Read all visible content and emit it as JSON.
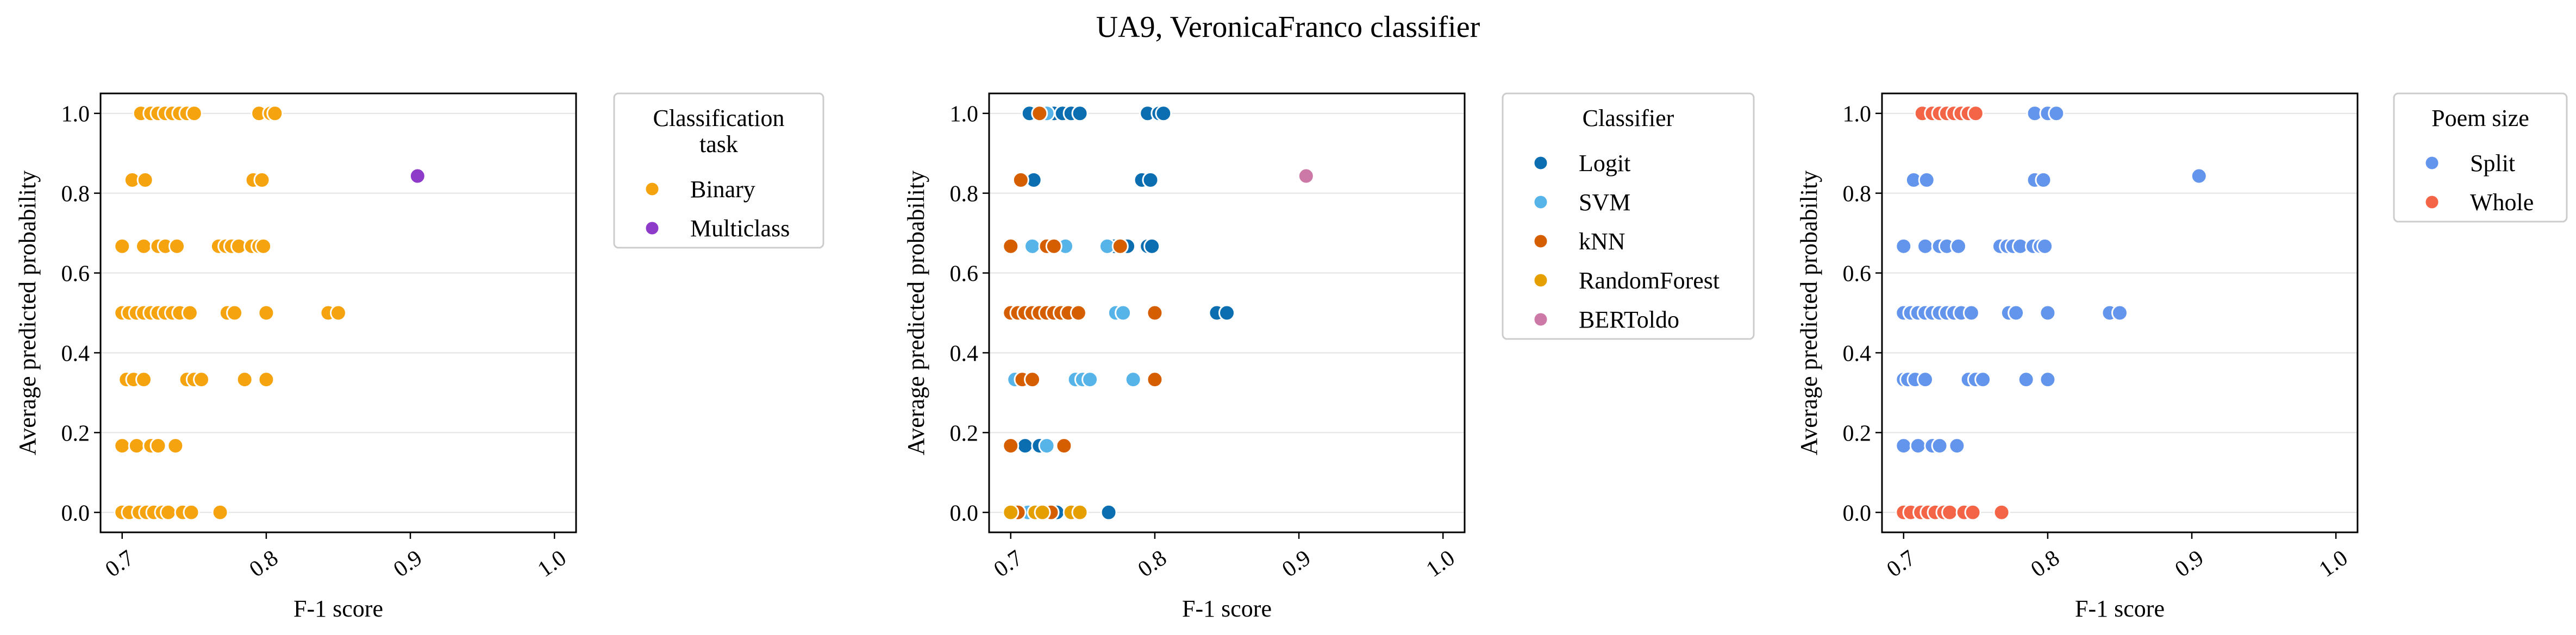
{
  "figure": {
    "suptitle": "UA9, VeronicaFranco classifier"
  },
  "chart_data": [
    {
      "type": "scatter",
      "xlabel": "F-1 score",
      "ylabel": "Average predicted probability",
      "xlim": [
        0.685,
        1.015
      ],
      "ylim": [
        -0.05,
        1.05
      ],
      "xticks": [
        "0.7",
        "0.8",
        "0.9",
        "1.0"
      ],
      "yticks": [
        "0.0",
        "0.2",
        "0.4",
        "0.6",
        "0.8",
        "1.0"
      ],
      "grid": "horizontal",
      "legend": {
        "title": "Classification\ntask",
        "placement": "outside-right",
        "entries": [
          {
            "label": "Binary",
            "color": "#f5a30f"
          },
          {
            "label": "Multiclass",
            "color": "#8e3bc9"
          }
        ]
      },
      "series": [
        {
          "name": "Binary",
          "color": "#f5a30f",
          "points": [
            [
              0.713,
              1.0
            ],
            [
              0.72,
              1.0
            ],
            [
              0.725,
              1.0
            ],
            [
              0.73,
              1.0
            ],
            [
              0.735,
              1.0
            ],
            [
              0.74,
              1.0
            ],
            [
              0.745,
              1.0
            ],
            [
              0.75,
              1.0
            ],
            [
              0.795,
              1.0
            ],
            [
              0.803,
              1.0
            ],
            [
              0.806,
              1.0
            ],
            [
              0.707,
              0.833
            ],
            [
              0.716,
              0.833
            ],
            [
              0.791,
              0.833
            ],
            [
              0.797,
              0.833
            ],
            [
              0.7,
              0.667
            ],
            [
              0.715,
              0.667
            ],
            [
              0.725,
              0.667
            ],
            [
              0.73,
              0.667
            ],
            [
              0.738,
              0.667
            ],
            [
              0.767,
              0.667
            ],
            [
              0.772,
              0.667
            ],
            [
              0.776,
              0.667
            ],
            [
              0.781,
              0.667
            ],
            [
              0.79,
              0.667
            ],
            [
              0.795,
              0.667
            ],
            [
              0.798,
              0.667
            ],
            [
              0.7,
              0.5
            ],
            [
              0.705,
              0.5
            ],
            [
              0.71,
              0.5
            ],
            [
              0.715,
              0.5
            ],
            [
              0.72,
              0.5
            ],
            [
              0.725,
              0.5
            ],
            [
              0.73,
              0.5
            ],
            [
              0.735,
              0.5
            ],
            [
              0.74,
              0.5
            ],
            [
              0.747,
              0.5
            ],
            [
              0.773,
              0.5
            ],
            [
              0.778,
              0.5
            ],
            [
              0.8,
              0.5
            ],
            [
              0.843,
              0.5
            ],
            [
              0.85,
              0.5
            ],
            [
              0.703,
              0.333
            ],
            [
              0.708,
              0.333
            ],
            [
              0.715,
              0.333
            ],
            [
              0.745,
              0.333
            ],
            [
              0.75,
              0.333
            ],
            [
              0.755,
              0.333
            ],
            [
              0.785,
              0.333
            ],
            [
              0.8,
              0.333
            ],
            [
              0.7,
              0.167
            ],
            [
              0.71,
              0.167
            ],
            [
              0.72,
              0.167
            ],
            [
              0.725,
              0.167
            ],
            [
              0.737,
              0.167
            ],
            [
              0.7,
              0.0
            ],
            [
              0.705,
              0.0
            ],
            [
              0.712,
              0.0
            ],
            [
              0.717,
              0.0
            ],
            [
              0.722,
              0.0
            ],
            [
              0.728,
              0.0
            ],
            [
              0.732,
              0.0
            ],
            [
              0.742,
              0.0
            ],
            [
              0.748,
              0.0
            ],
            [
              0.768,
              0.0
            ]
          ]
        },
        {
          "name": "Multiclass",
          "color": "#8e3bc9",
          "points": [
            [
              0.905,
              0.843
            ]
          ]
        }
      ]
    },
    {
      "type": "scatter",
      "xlabel": "F-1 score",
      "ylabel": "Average predicted probability",
      "xlim": [
        0.685,
        1.015
      ],
      "ylim": [
        -0.05,
        1.05
      ],
      "xticks": [
        "0.7",
        "0.8",
        "0.9",
        "1.0"
      ],
      "yticks": [
        "0.0",
        "0.2",
        "0.4",
        "0.6",
        "0.8",
        "1.0"
      ],
      "grid": "horizontal",
      "legend": {
        "title": "Classifier",
        "placement": "outside-right",
        "entries": [
          {
            "label": "Logit",
            "color": "#0b6eb0"
          },
          {
            "label": "SVM",
            "color": "#56b4e9"
          },
          {
            "label": "kNN",
            "color": "#d55e00"
          },
          {
            "label": "RandomForest",
            "color": "#e69f00"
          },
          {
            "label": "BERToldo",
            "color": "#cc79a7"
          }
        ]
      },
      "series": [
        {
          "name": "Logit",
          "color": "#0b6eb0",
          "points": [
            [
              0.713,
              1.0
            ],
            [
              0.73,
              1.0
            ],
            [
              0.736,
              1.0
            ],
            [
              0.742,
              1.0
            ],
            [
              0.748,
              1.0
            ],
            [
              0.795,
              1.0
            ],
            [
              0.803,
              1.0
            ],
            [
              0.806,
              1.0
            ],
            [
              0.716,
              0.833
            ],
            [
              0.791,
              0.833
            ],
            [
              0.797,
              0.833
            ],
            [
              0.772,
              0.667
            ],
            [
              0.781,
              0.667
            ],
            [
              0.795,
              0.667
            ],
            [
              0.798,
              0.667
            ],
            [
              0.843,
              0.5
            ],
            [
              0.85,
              0.5
            ],
            [
              0.71,
              0.167
            ],
            [
              0.72,
              0.167
            ],
            [
              0.732,
              0.0
            ],
            [
              0.768,
              0.0
            ]
          ]
        },
        {
          "name": "SVM",
          "color": "#56b4e9",
          "points": [
            [
              0.725,
              1.0
            ],
            [
              0.715,
              0.667
            ],
            [
              0.738,
              0.667
            ],
            [
              0.767,
              0.667
            ],
            [
              0.773,
              0.5
            ],
            [
              0.778,
              0.5
            ],
            [
              0.703,
              0.333
            ],
            [
              0.745,
              0.333
            ],
            [
              0.75,
              0.333
            ],
            [
              0.755,
              0.333
            ],
            [
              0.785,
              0.333
            ],
            [
              0.725,
              0.167
            ],
            [
              0.712,
              0.0
            ]
          ]
        },
        {
          "name": "kNN",
          "color": "#d55e00",
          "points": [
            [
              0.72,
              1.0
            ],
            [
              0.707,
              0.833
            ],
            [
              0.7,
              0.667
            ],
            [
              0.725,
              0.667
            ],
            [
              0.73,
              0.667
            ],
            [
              0.776,
              0.667
            ],
            [
              0.7,
              0.5
            ],
            [
              0.705,
              0.5
            ],
            [
              0.71,
              0.5
            ],
            [
              0.715,
              0.5
            ],
            [
              0.72,
              0.5
            ],
            [
              0.725,
              0.5
            ],
            [
              0.73,
              0.5
            ],
            [
              0.735,
              0.5
            ],
            [
              0.74,
              0.5
            ],
            [
              0.747,
              0.5
            ],
            [
              0.8,
              0.5
            ],
            [
              0.708,
              0.333
            ],
            [
              0.715,
              0.333
            ],
            [
              0.8,
              0.333
            ],
            [
              0.7,
              0.167
            ],
            [
              0.737,
              0.167
            ],
            [
              0.705,
              0.0
            ],
            [
              0.728,
              0.0
            ]
          ]
        },
        {
          "name": "RandomForest",
          "color": "#e69f00",
          "points": [
            [
              0.7,
              0.0
            ],
            [
              0.717,
              0.0
            ],
            [
              0.722,
              0.0
            ],
            [
              0.742,
              0.0
            ],
            [
              0.748,
              0.0
            ]
          ]
        },
        {
          "name": "BERToldo",
          "color": "#cc79a7",
          "points": [
            [
              0.905,
              0.843
            ]
          ]
        }
      ]
    },
    {
      "type": "scatter",
      "xlabel": "F-1 score",
      "ylabel": "Average predicted probability",
      "xlim": [
        0.685,
        1.015
      ],
      "ylim": [
        -0.05,
        1.05
      ],
      "xticks": [
        "0.7",
        "0.8",
        "0.9",
        "1.0"
      ],
      "yticks": [
        "0.0",
        "0.2",
        "0.4",
        "0.6",
        "0.8",
        "1.0"
      ],
      "grid": "horizontal",
      "legend": {
        "title": "Poem size",
        "placement": "outside-right",
        "entries": [
          {
            "label": "Split",
            "color": "#6495ed"
          },
          {
            "label": "Whole",
            "color": "#f46548"
          }
        ]
      },
      "series": [
        {
          "name": "Split",
          "color": "#6495ed",
          "points": [
            [
              0.791,
              1.0
            ],
            [
              0.8,
              1.0
            ],
            [
              0.806,
              1.0
            ],
            [
              0.707,
              0.833
            ],
            [
              0.716,
              0.833
            ],
            [
              0.791,
              0.833
            ],
            [
              0.797,
              0.833
            ],
            [
              0.905,
              0.843
            ],
            [
              0.7,
              0.667
            ],
            [
              0.715,
              0.667
            ],
            [
              0.725,
              0.667
            ],
            [
              0.73,
              0.667
            ],
            [
              0.738,
              0.667
            ],
            [
              0.767,
              0.667
            ],
            [
              0.772,
              0.667
            ],
            [
              0.776,
              0.667
            ],
            [
              0.781,
              0.667
            ],
            [
              0.79,
              0.667
            ],
            [
              0.795,
              0.667
            ],
            [
              0.798,
              0.667
            ],
            [
              0.7,
              0.5
            ],
            [
              0.705,
              0.5
            ],
            [
              0.71,
              0.5
            ],
            [
              0.715,
              0.5
            ],
            [
              0.72,
              0.5
            ],
            [
              0.725,
              0.5
            ],
            [
              0.73,
              0.5
            ],
            [
              0.735,
              0.5
            ],
            [
              0.74,
              0.5
            ],
            [
              0.747,
              0.5
            ],
            [
              0.773,
              0.5
            ],
            [
              0.778,
              0.5
            ],
            [
              0.8,
              0.5
            ],
            [
              0.843,
              0.5
            ],
            [
              0.85,
              0.5
            ],
            [
              0.7,
              0.333
            ],
            [
              0.703,
              0.333
            ],
            [
              0.708,
              0.333
            ],
            [
              0.715,
              0.333
            ],
            [
              0.745,
              0.333
            ],
            [
              0.75,
              0.333
            ],
            [
              0.755,
              0.333
            ],
            [
              0.785,
              0.333
            ],
            [
              0.8,
              0.333
            ],
            [
              0.7,
              0.167
            ],
            [
              0.71,
              0.167
            ],
            [
              0.72,
              0.167
            ],
            [
              0.725,
              0.167
            ],
            [
              0.737,
              0.167
            ]
          ]
        },
        {
          "name": "Whole",
          "color": "#f46548",
          "points": [
            [
              0.713,
              1.0
            ],
            [
              0.72,
              1.0
            ],
            [
              0.725,
              1.0
            ],
            [
              0.73,
              1.0
            ],
            [
              0.735,
              1.0
            ],
            [
              0.74,
              1.0
            ],
            [
              0.745,
              1.0
            ],
            [
              0.75,
              1.0
            ],
            [
              0.7,
              0.0
            ],
            [
              0.705,
              0.0
            ],
            [
              0.712,
              0.0
            ],
            [
              0.717,
              0.0
            ],
            [
              0.722,
              0.0
            ],
            [
              0.728,
              0.0
            ],
            [
              0.732,
              0.0
            ],
            [
              0.742,
              0.0
            ],
            [
              0.748,
              0.0
            ],
            [
              0.768,
              0.0
            ]
          ]
        }
      ]
    }
  ]
}
